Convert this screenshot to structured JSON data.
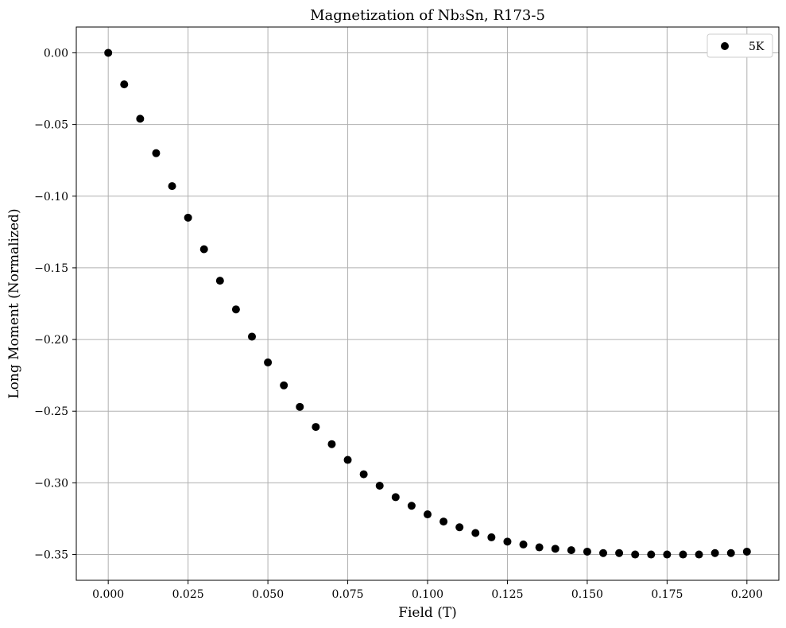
{
  "chart_data": {
    "type": "scatter",
    "title": "Magnetization of Nb₃Sn, R173-5",
    "xlabel": "Field (T)",
    "ylabel": "Long Moment (Normalized)",
    "xlim": [
      -0.01,
      0.21
    ],
    "ylim": [
      -0.368,
      0.018
    ],
    "xticks": [
      0.0,
      0.025,
      0.05,
      0.075,
      0.1,
      0.125,
      0.15,
      0.175,
      0.2
    ],
    "xtick_labels": [
      "0.000",
      "0.025",
      "0.050",
      "0.075",
      "0.100",
      "0.125",
      "0.150",
      "0.175",
      "0.200"
    ],
    "yticks": [
      0.0,
      -0.05,
      -0.1,
      -0.15,
      -0.2,
      -0.25,
      -0.3,
      -0.35
    ],
    "ytick_labels": [
      "0.00",
      "−0.05",
      "−0.10",
      "−0.15",
      "−0.20",
      "−0.25",
      "−0.30",
      "−0.35"
    ],
    "grid": true,
    "legend_position": "top-right",
    "series": [
      {
        "name": "5K",
        "color": "#000000",
        "x": [
          0.0,
          0.005,
          0.01,
          0.015,
          0.02,
          0.025,
          0.03,
          0.035,
          0.04,
          0.045,
          0.05,
          0.055,
          0.06,
          0.065,
          0.07,
          0.075,
          0.08,
          0.085,
          0.09,
          0.095,
          0.1,
          0.105,
          0.11,
          0.115,
          0.12,
          0.125,
          0.13,
          0.135,
          0.14,
          0.145,
          0.15,
          0.155,
          0.16,
          0.165,
          0.17,
          0.175,
          0.18,
          0.185,
          0.19,
          0.195,
          0.2
        ],
        "y": [
          0.0,
          -0.022,
          -0.046,
          -0.07,
          -0.093,
          -0.115,
          -0.137,
          -0.159,
          -0.179,
          -0.198,
          -0.216,
          -0.232,
          -0.247,
          -0.261,
          -0.273,
          -0.284,
          -0.294,
          -0.302,
          -0.31,
          -0.316,
          -0.322,
          -0.327,
          -0.331,
          -0.335,
          -0.338,
          -0.341,
          -0.343,
          -0.345,
          -0.346,
          -0.347,
          -0.348,
          -0.349,
          -0.349,
          -0.35,
          -0.35,
          -0.35,
          -0.35,
          -0.35,
          -0.349,
          -0.349,
          -0.348
        ]
      }
    ]
  }
}
